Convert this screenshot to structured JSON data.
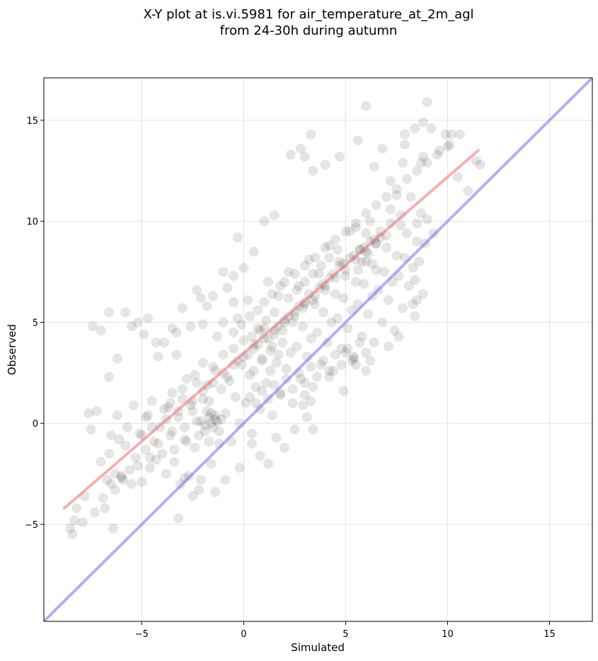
{
  "chart_data": {
    "type": "scatter",
    "title": "X-Y plot at is.vi.5981 for air_temperature_at_2m_agl",
    "subtitle": "from 24-30h during autumn",
    "xlabel": "Simulated",
    "ylabel": "Observed",
    "xlim": [
      -9.8,
      17.1
    ],
    "ylim": [
      -9.8,
      17.1
    ],
    "xticks": [
      -5,
      0,
      5,
      10,
      15
    ],
    "yticks": [
      -5,
      0,
      5,
      10,
      15
    ],
    "xtick_labels": [
      "−5",
      "0",
      "5",
      "10",
      "15"
    ],
    "ytick_labels": [
      "−5",
      "0",
      "5",
      "10",
      "15"
    ],
    "grid": true,
    "colors": {
      "points": "#000000",
      "fit_line": "#ef6f6f",
      "identity_line": "#6f6fef",
      "grid": "#e6e6e6"
    },
    "fit_line": {
      "x": [
        -8.8,
        11.5
      ],
      "y": [
        -4.2,
        13.5
      ]
    },
    "identity_line": {
      "x": [
        -9.8,
        17.1
      ],
      "y": [
        -9.8,
        17.1
      ]
    },
    "points": [
      [
        -8.5,
        -5.2
      ],
      [
        -8.4,
        -5.5
      ],
      [
        -8.3,
        -4.8
      ],
      [
        -8.2,
        -4.2
      ],
      [
        -7.9,
        -4.9
      ],
      [
        -7.8,
        -3.6
      ],
      [
        -7.6,
        0.5
      ],
      [
        -7.5,
        -0.3
      ],
      [
        -7.3,
        -4.4
      ],
      [
        -7.2,
        0.6
      ],
      [
        -7.0,
        -1.9
      ],
      [
        -6.9,
        -3.7
      ],
      [
        -6.8,
        -4.2
      ],
      [
        -6.6,
        -1.5
      ],
      [
        -6.5,
        -0.6
      ],
      [
        -6.4,
        -5.2
      ],
      [
        -6.3,
        -3.3
      ],
      [
        -6.2,
        0.4
      ],
      [
        -6.1,
        -0.8
      ],
      [
        -6.0,
        -2.6
      ],
      [
        -5.9,
        -2.8
      ],
      [
        -5.8,
        -1.1
      ],
      [
        -5.7,
        -0.2
      ],
      [
        -5.6,
        -2.3
      ],
      [
        -5.5,
        -3.0
      ],
      [
        -5.4,
        0.9
      ],
      [
        -5.3,
        -1.7
      ],
      [
        -5.2,
        -2.1
      ],
      [
        -5.1,
        -0.5
      ],
      [
        -5.0,
        -2.9
      ],
      [
        -6.2,
        3.2
      ],
      [
        -6.6,
        2.3
      ],
      [
        -5.8,
        5.5
      ],
      [
        -5.2,
        5.0
      ],
      [
        -7.4,
        4.8
      ],
      [
        -7.0,
        4.6
      ],
      [
        -6.7,
        -2.8
      ],
      [
        -6.5,
        -3.0
      ],
      [
        -6.3,
        -2.5
      ],
      [
        -6.0,
        -2.7
      ],
      [
        -4.9,
        4.4
      ],
      [
        -4.8,
        -1.3
      ],
      [
        -4.7,
        0.4
      ],
      [
        -4.6,
        -2.2
      ],
      [
        -4.5,
        1.1
      ],
      [
        -4.4,
        -0.9
      ],
      [
        -4.3,
        -1.8
      ],
      [
        -4.2,
        3.3
      ],
      [
        -4.1,
        -0.2
      ],
      [
        -4.0,
        -1.5
      ],
      [
        -3.9,
        4.0
      ],
      [
        -3.8,
        -2.5
      ],
      [
        -3.7,
        0.8
      ],
      [
        -3.6,
        -0.6
      ],
      [
        -3.5,
        1.5
      ],
      [
        -3.4,
        -1.9
      ],
      [
        -3.3,
        4.5
      ],
      [
        -3.2,
        0.3
      ],
      [
        -3.1,
        -3.0
      ],
      [
        -3.0,
        1.2
      ],
      [
        -2.9,
        -0.8
      ],
      [
        -2.8,
        2.2
      ],
      [
        -2.7,
        -2.6
      ],
      [
        -2.6,
        4.8
      ],
      [
        -2.5,
        0.6
      ],
      [
        -2.4,
        -1.2
      ],
      [
        -2.3,
        2.0
      ],
      [
        -2.2,
        -3.3
      ],
      [
        -2.1,
        0.1
      ],
      [
        -2.0,
        3.0
      ],
      [
        -1.9,
        -0.4
      ],
      [
        -1.8,
        5.8
      ],
      [
        -1.7,
        1.1
      ],
      [
        -1.6,
        -2.0
      ],
      [
        -1.5,
        2.8
      ],
      [
        -1.4,
        0.2
      ],
      [
        -1.3,
        4.3
      ],
      [
        -1.2,
        -1.0
      ],
      [
        -1.1,
        1.7
      ],
      [
        -1.0,
        3.4
      ],
      [
        -0.9,
        0.5
      ],
      [
        -0.8,
        6.7
      ],
      [
        -0.7,
        2.1
      ],
      [
        -0.6,
        -0.9
      ],
      [
        -0.5,
        3.7
      ],
      [
        -0.4,
        1.3
      ],
      [
        -0.3,
        5.2
      ],
      [
        -0.2,
        0.0
      ],
      [
        -0.1,
        2.9
      ],
      [
        0.0,
        4.1
      ],
      [
        0.1,
        1.0
      ],
      [
        0.2,
        6.1
      ],
      [
        0.3,
        2.4
      ],
      [
        0.4,
        -0.5
      ],
      [
        0.5,
        3.9
      ],
      [
        0.6,
        1.8
      ],
      [
        0.7,
        5.6
      ],
      [
        0.8,
        0.7
      ],
      [
        0.9,
        3.1
      ],
      [
        1.0,
        4.7
      ],
      [
        1.1,
        2.0
      ],
      [
        1.2,
        7.0
      ],
      [
        1.3,
        2.6
      ],
      [
        1.4,
        0.4
      ],
      [
        1.5,
        4.4
      ],
      [
        1.6,
        3.0
      ],
      [
        1.7,
        6.3
      ],
      [
        1.8,
        1.5
      ],
      [
        1.9,
        4.0
      ],
      [
        2.0,
        5.1
      ],
      [
        2.1,
        2.7
      ],
      [
        2.2,
        7.5
      ],
      [
        2.3,
        3.5
      ],
      [
        2.4,
        1.0
      ],
      [
        2.5,
        5.3
      ],
      [
        2.6,
        3.8
      ],
      [
        2.7,
        6.8
      ],
      [
        2.8,
        2.2
      ],
      [
        2.9,
        4.8
      ],
      [
        3.0,
        6.0
      ],
      [
        3.1,
        3.3
      ],
      [
        3.2,
        8.1
      ],
      [
        3.3,
        4.2
      ],
      [
        3.4,
        1.8
      ],
      [
        3.5,
        5.9
      ],
      [
        3.6,
        4.5
      ],
      [
        3.7,
        7.4
      ],
      [
        3.8,
        2.9
      ],
      [
        3.9,
        5.5
      ],
      [
        4.0,
        6.6
      ],
      [
        4.1,
        4.0
      ],
      [
        4.2,
        8.8
      ],
      [
        4.3,
        5.0
      ],
      [
        4.4,
        2.6
      ],
      [
        4.5,
        6.4
      ],
      [
        4.6,
        5.2
      ],
      [
        4.7,
        8.0
      ],
      [
        4.8,
        3.7
      ],
      [
        4.9,
        6.2
      ],
      [
        5.0,
        7.3
      ],
      [
        5.1,
        4.7
      ],
      [
        5.2,
        9.5
      ],
      [
        5.3,
        5.6
      ],
      [
        5.4,
        3.3
      ],
      [
        5.5,
        7.0
      ],
      [
        5.6,
        5.9
      ],
      [
        5.7,
        8.6
      ],
      [
        5.8,
        4.3
      ],
      [
        5.9,
        6.9
      ],
      [
        6.0,
        8.0
      ],
      [
        6.1,
        5.4
      ],
      [
        6.2,
        10.0
      ],
      [
        6.3,
        6.3
      ],
      [
        6.4,
        4.0
      ],
      [
        6.5,
        7.6
      ],
      [
        6.6,
        6.6
      ],
      [
        6.7,
        9.2
      ],
      [
        6.8,
        5.0
      ],
      [
        6.9,
        7.5
      ],
      [
        7.0,
        8.7
      ],
      [
        7.1,
        6.1
      ],
      [
        7.2,
        10.6
      ],
      [
        7.3,
        7.0
      ],
      [
        7.4,
        4.6
      ],
      [
        7.5,
        8.3
      ],
      [
        7.6,
        7.3
      ],
      [
        7.7,
        9.8
      ],
      [
        7.8,
        5.7
      ],
      [
        7.9,
        8.2
      ],
      [
        8.0,
        9.4
      ],
      [
        8.1,
        6.8
      ],
      [
        8.2,
        11.2
      ],
      [
        8.3,
        7.7
      ],
      [
        8.4,
        5.3
      ],
      [
        8.5,
        9.0
      ],
      [
        8.6,
        8.0
      ],
      [
        8.7,
        10.4
      ],
      [
        8.8,
        6.4
      ],
      [
        8.9,
        8.9
      ],
      [
        9.0,
        10.1
      ],
      [
        6.0,
        15.7
      ],
      [
        7.9,
        14.3
      ],
      [
        8.4,
        14.6
      ],
      [
        9.0,
        15.9
      ],
      [
        8.8,
        14.9
      ],
      [
        10.6,
        14.3
      ],
      [
        9.9,
        14.3
      ],
      [
        9.2,
        14.6
      ],
      [
        10.2,
        14.3
      ],
      [
        11.4,
        13.0
      ],
      [
        11.6,
        12.8
      ],
      [
        11.0,
        11.5
      ],
      [
        10.1,
        13.8
      ],
      [
        8.7,
        12.9
      ],
      [
        9.6,
        13.5
      ],
      [
        10.5,
        12.2
      ],
      [
        9.3,
        9.4
      ],
      [
        8.5,
        9.9
      ],
      [
        7.9,
        13.8
      ],
      [
        7.5,
        11.3
      ],
      [
        6.4,
        12.7
      ],
      [
        6.8,
        13.6
      ],
      [
        5.6,
        14.0
      ],
      [
        4.7,
        13.2
      ],
      [
        4.0,
        12.8
      ],
      [
        3.4,
        12.5
      ],
      [
        3.0,
        13.2
      ],
      [
        2.3,
        13.3
      ],
      [
        2.8,
        13.6
      ],
      [
        3.3,
        14.3
      ],
      [
        1.5,
        10.3
      ],
      [
        1.0,
        10.0
      ],
      [
        0.5,
        8.5
      ],
      [
        -0.3,
        9.2
      ],
      [
        0.0,
        7.7
      ],
      [
        -0.5,
        7.3
      ],
      [
        -1.0,
        7.5
      ],
      [
        -1.5,
        6.3
      ],
      [
        -2.3,
        6.6
      ],
      [
        -2.1,
        6.2
      ],
      [
        -3.0,
        5.7
      ],
      [
        -3.5,
        4.7
      ],
      [
        -4.3,
        4.0
      ],
      [
        -4.7,
        5.2
      ],
      [
        -5.5,
        4.8
      ],
      [
        -6.6,
        5.5
      ],
      [
        -3.3,
        3.4
      ],
      [
        -2.0,
        4.9
      ],
      [
        -1.0,
        5.0
      ],
      [
        -0.5,
        6.0
      ],
      [
        0.8,
        -1.6
      ],
      [
        1.2,
        -2.0
      ],
      [
        0.4,
        -1.0
      ],
      [
        -0.2,
        -2.2
      ],
      [
        -0.9,
        -2.8
      ],
      [
        -1.4,
        -3.4
      ],
      [
        -2.5,
        -3.6
      ],
      [
        -3.2,
        -4.7
      ],
      [
        -2.9,
        -2.7
      ],
      [
        -2.1,
        -2.8
      ],
      [
        1.6,
        -0.7
      ],
      [
        2.0,
        -1.2
      ],
      [
        2.5,
        -0.3
      ],
      [
        3.1,
        0.3
      ],
      [
        3.4,
        -0.3
      ],
      [
        2.9,
        0.9
      ],
      [
        3.0,
        1.4
      ],
      [
        3.3,
        1.1
      ],
      [
        4.2,
        2.3
      ],
      [
        4.9,
        1.6
      ],
      [
        5.5,
        2.9
      ],
      [
        5.3,
        3.1
      ],
      [
        5.0,
        3.5
      ],
      [
        6.0,
        2.6
      ],
      [
        6.2,
        3.1
      ],
      [
        7.1,
        3.8
      ],
      [
        7.6,
        4.3
      ],
      [
        8.3,
        5.9
      ],
      [
        8.5,
        6.1
      ],
      [
        8.4,
        7.1
      ],
      [
        0.5,
        2.6
      ],
      [
        0.9,
        3.2
      ],
      [
        1.4,
        3.8
      ],
      [
        1.9,
        4.6
      ],
      [
        2.4,
        5.0
      ],
      [
        2.9,
        5.7
      ],
      [
        3.4,
        6.1
      ],
      [
        3.9,
        6.9
      ],
      [
        4.4,
        7.4
      ],
      [
        4.9,
        7.9
      ],
      [
        5.4,
        8.3
      ],
      [
        5.9,
        8.7
      ],
      [
        6.4,
        9.1
      ],
      [
        6.1,
        8.4
      ],
      [
        5.8,
        8.0
      ],
      [
        6.3,
        7.9
      ],
      [
        5.6,
        7.6
      ],
      [
        6.0,
        9.4
      ],
      [
        6.5,
        8.9
      ],
      [
        5.5,
        9.7
      ],
      [
        -1.8,
        1.9
      ],
      [
        -1.4,
        2.6
      ],
      [
        -0.8,
        2.3
      ],
      [
        -0.3,
        3.1
      ],
      [
        0.2,
        3.4
      ],
      [
        0.7,
        3.9
      ],
      [
        1.2,
        4.2
      ],
      [
        1.7,
        4.8
      ],
      [
        2.2,
        5.3
      ],
      [
        2.7,
        5.8
      ],
      [
        3.2,
        6.4
      ],
      [
        3.7,
        6.7
      ],
      [
        4.2,
        7.2
      ],
      [
        4.7,
        7.8
      ],
      [
        5.2,
        8.2
      ],
      [
        5.7,
        8.6
      ],
      [
        6.2,
        9.0
      ],
      [
        6.7,
        9.5
      ],
      [
        7.2,
        9.9
      ],
      [
        7.7,
        10.3
      ],
      [
        -2.5,
        1.1
      ],
      [
        -2.0,
        1.6
      ],
      [
        -1.5,
        2.0
      ],
      [
        -1.0,
        2.5
      ],
      [
        -0.5,
        2.9
      ],
      [
        0.0,
        3.3
      ],
      [
        0.5,
        3.7
      ],
      [
        1.0,
        4.2
      ],
      [
        1.5,
        4.6
      ],
      [
        2.0,
        5.0
      ],
      [
        2.5,
        5.5
      ],
      [
        3.0,
        5.9
      ],
      [
        3.5,
        6.3
      ],
      [
        4.0,
        6.8
      ],
      [
        4.5,
        7.2
      ],
      [
        5.0,
        7.6
      ],
      [
        5.5,
        8.1
      ],
      [
        6.0,
        8.5
      ],
      [
        6.5,
        8.9
      ],
      [
        7.0,
        9.3
      ],
      [
        -1.7,
        0.3
      ],
      [
        -1.6,
        0.0
      ],
      [
        -1.5,
        -0.2
      ],
      [
        -1.4,
        0.4
      ],
      [
        -1.3,
        0.1
      ],
      [
        -1.8,
        0.6
      ],
      [
        -1.2,
        -0.4
      ],
      [
        -1.9,
        -0.1
      ],
      [
        -1.6,
        0.5
      ],
      [
        -1.1,
        0.2
      ],
      [
        0.3,
        1.3
      ],
      [
        0.6,
        1.0
      ],
      [
        0.9,
        1.6
      ],
      [
        1.2,
        1.2
      ],
      [
        1.5,
        1.9
      ],
      [
        1.8,
        1.4
      ],
      [
        2.1,
        2.2
      ],
      [
        2.4,
        1.7
      ],
      [
        2.7,
        2.5
      ],
      [
        3.0,
        2.0
      ],
      [
        3.3,
        2.8
      ],
      [
        3.6,
        2.3
      ],
      [
        3.9,
        3.1
      ],
      [
        4.2,
        2.6
      ],
      [
        4.5,
        3.4
      ],
      [
        4.8,
        2.9
      ],
      [
        5.1,
        3.7
      ],
      [
        5.4,
        3.2
      ],
      [
        5.7,
        4.0
      ],
      [
        6.0,
        3.5
      ],
      [
        2.0,
        7.0
      ],
      [
        2.5,
        7.4
      ],
      [
        3.0,
        7.8
      ],
      [
        3.5,
        8.2
      ],
      [
        4.0,
        8.7
      ],
      [
        4.5,
        9.1
      ],
      [
        5.0,
        9.5
      ],
      [
        5.5,
        9.9
      ],
      [
        6.0,
        10.4
      ],
      [
        6.5,
        10.8
      ],
      [
        7.0,
        11.2
      ],
      [
        7.5,
        11.6
      ],
      [
        8.0,
        12.1
      ],
      [
        8.5,
        12.5
      ],
      [
        9.0,
        12.9
      ],
      [
        9.5,
        13.3
      ],
      [
        10.0,
        13.7
      ],
      [
        7.2,
        12.0
      ],
      [
        7.8,
        12.9
      ],
      [
        8.8,
        13.2
      ],
      [
        -3.8,
        0.2
      ],
      [
        -3.5,
        -0.4
      ],
      [
        -3.2,
        0.6
      ],
      [
        -2.9,
        -0.2
      ],
      [
        -2.6,
        0.9
      ],
      [
        -2.3,
        0.1
      ],
      [
        -2.0,
        1.2
      ],
      [
        -3.6,
        1.0
      ],
      [
        -3.0,
        1.7
      ],
      [
        -2.4,
        2.4
      ],
      [
        -4.5,
        -0.2
      ],
      [
        -4.2,
        -1.0
      ],
      [
        -3.9,
        0.7
      ],
      [
        -4.8,
        0.3
      ],
      [
        -5.0,
        -0.6
      ],
      [
        -4.6,
        -1.7
      ],
      [
        -3.4,
        -1.3
      ],
      [
        -2.8,
        -0.9
      ],
      [
        -2.2,
        -0.6
      ],
      [
        -1.7,
        -0.9
      ],
      [
        1.0,
        6.0
      ],
      [
        1.4,
        6.4
      ],
      [
        1.8,
        6.8
      ],
      [
        2.2,
        6.2
      ],
      [
        2.6,
        6.6
      ],
      [
        3.0,
        7.0
      ],
      [
        3.4,
        7.4
      ],
      [
        3.8,
        7.8
      ],
      [
        4.2,
        8.2
      ],
      [
        4.6,
        8.6
      ],
      [
        -0.5,
        4.5
      ],
      [
        -0.1,
        4.9
      ],
      [
        0.3,
        5.3
      ],
      [
        0.7,
        4.7
      ],
      [
        1.1,
        5.1
      ],
      [
        1.5,
        5.5
      ],
      [
        0.4,
        4.3
      ],
      [
        0.8,
        4.6
      ],
      [
        1.3,
        3.6
      ],
      [
        1.7,
        3.4
      ]
    ]
  }
}
